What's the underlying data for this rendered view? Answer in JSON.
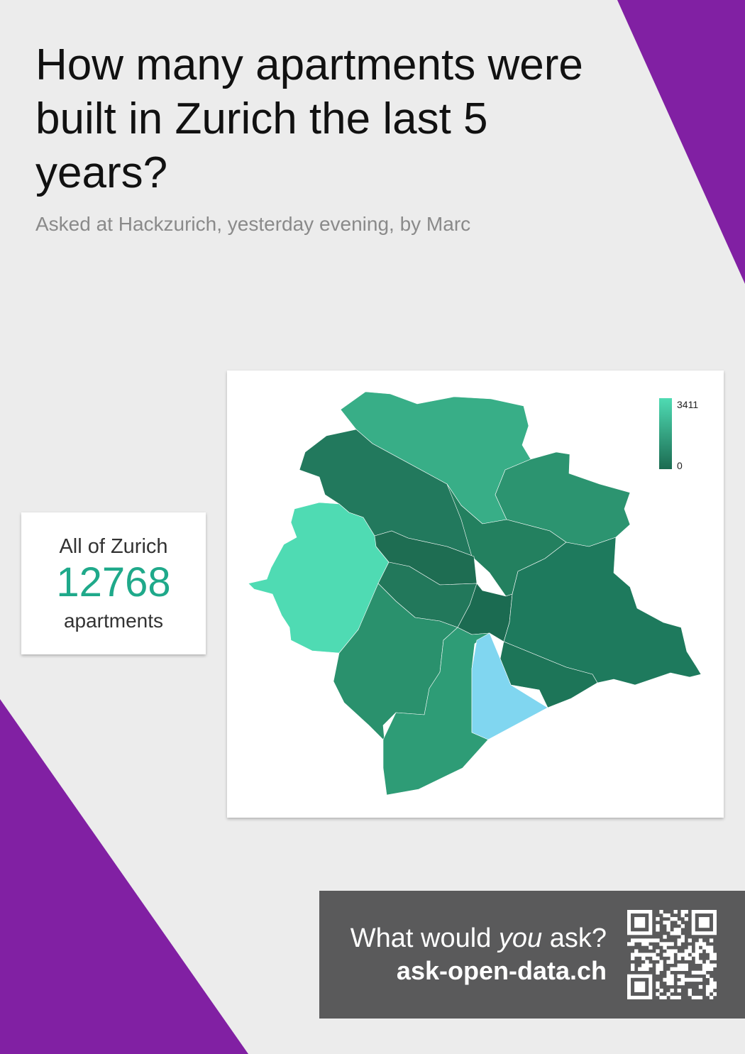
{
  "title": "How many apartments were built in Zurich the last 5 years?",
  "subtitle": "Asked at Hackzurich, yesterday evening, by Marc",
  "stat": {
    "label": "All of Zurich",
    "value": "12768",
    "unit": "apartments"
  },
  "map": {
    "legend_max": "3411",
    "legend_min": "0",
    "colors": {
      "high": "#4fdbb3",
      "low": "#1b6b51",
      "no_data": "#80d6f0"
    }
  },
  "cta": {
    "prefix": "What would ",
    "emphasis": "you",
    "suffix": " ask?",
    "url": "ask-open-data.ch"
  },
  "colors": {
    "background": "#ececec",
    "purple": "#8120a3",
    "accent": "#1fa98a",
    "cta_background": "#5a5a5b"
  },
  "icons": {
    "qr": "qr-code-icon"
  }
}
